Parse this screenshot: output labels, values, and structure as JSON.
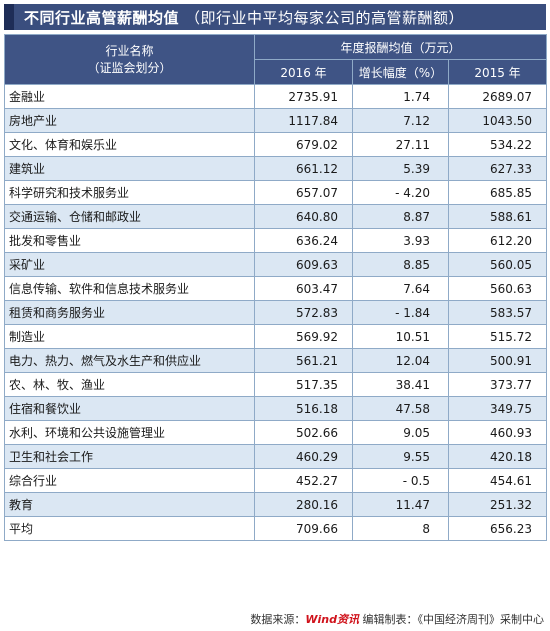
{
  "title": "不同行业高管薪酬均值",
  "subtitle": "（即行业中平均每家公司的高管薪酬额）",
  "header": {
    "industry_line1": "行业名称",
    "industry_line2": "（证监会划分）",
    "group": "年度报酬均值（万元）",
    "col_2016": "2016 年",
    "col_growth": "增长幅度（%）",
    "col_2015": "2015 年"
  },
  "rows": [
    {
      "name": "金融业",
      "v2016": "2735.91",
      "growth": "1.74",
      "v2015": "2689.07"
    },
    {
      "name": "房地产业",
      "v2016": "1117.84",
      "growth": "7.12",
      "v2015": "1043.50"
    },
    {
      "name": "文化、体育和娱乐业",
      "v2016": "679.02",
      "growth": "27.11",
      "v2015": "534.22"
    },
    {
      "name": "建筑业",
      "v2016": "661.12",
      "growth": "5.39",
      "v2015": "627.33"
    },
    {
      "name": "科学研究和技术服务业",
      "v2016": "657.07",
      "growth": "- 4.20",
      "v2015": "685.85"
    },
    {
      "name": "交通运输、仓储和邮政业",
      "v2016": "640.80",
      "growth": "8.87",
      "v2015": "588.61"
    },
    {
      "name": "批发和零售业",
      "v2016": "636.24",
      "growth": "3.93",
      "v2015": "612.20"
    },
    {
      "name": "采矿业",
      "v2016": "609.63",
      "growth": "8.85",
      "v2015": "560.05"
    },
    {
      "name": "信息传输、软件和信息技术服务业",
      "v2016": "603.47",
      "growth": "7.64",
      "v2015": "560.63"
    },
    {
      "name": "租赁和商务服务业",
      "v2016": "572.83",
      "growth": "- 1.84",
      "v2015": "583.57"
    },
    {
      "name": "制造业",
      "v2016": "569.92",
      "growth": "10.51",
      "v2015": "515.72"
    },
    {
      "name": "电力、热力、燃气及水生产和供应业",
      "v2016": "561.21",
      "growth": "12.04",
      "v2015": "500.91"
    },
    {
      "name": "农、林、牧、渔业",
      "v2016": "517.35",
      "growth": "38.41",
      "v2015": "373.77"
    },
    {
      "name": "住宿和餐饮业",
      "v2016": "516.18",
      "growth": "47.58",
      "v2015": "349.75"
    },
    {
      "name": "水利、环境和公共设施管理业",
      "v2016": "502.66",
      "growth": "9.05",
      "v2015": "460.93"
    },
    {
      "name": "卫生和社会工作",
      "v2016": "460.29",
      "growth": "9.55",
      "v2015": "420.18"
    },
    {
      "name": "综合行业",
      "v2016": "452.27",
      "growth": "- 0.5",
      "v2015": "454.61"
    },
    {
      "name": "教育",
      "v2016": "280.16",
      "growth": "11.47",
      "v2015": "251.32"
    },
    {
      "name": "平均",
      "v2016": "709.66",
      "growth": "8",
      "v2015": "656.23"
    }
  ],
  "source": {
    "prefix": "数据来源：",
    "brand": "Wind资讯",
    "suffix": "  编辑制表：《中国经济周刊》采制中心"
  }
}
